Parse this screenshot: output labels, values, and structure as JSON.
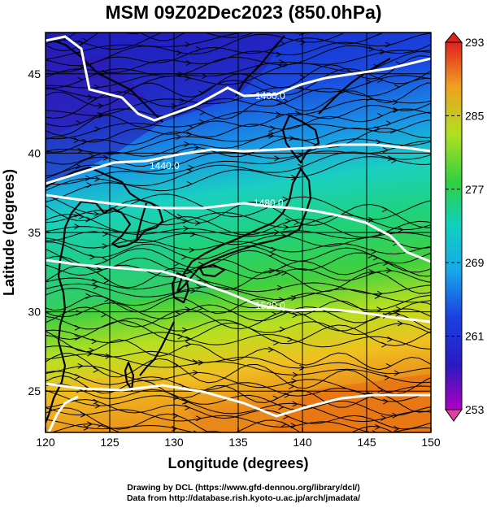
{
  "title": "MSM 09Z02Dec2023 (850.0hPa)",
  "xaxis": {
    "label": "Longitude (degrees)",
    "ticks": [
      120,
      125,
      130,
      135,
      140,
      145,
      150
    ],
    "range": [
      120,
      150
    ]
  },
  "yaxis": {
    "label": "Latitude  (degrees)",
    "ticks": [
      25,
      30,
      35,
      40,
      45
    ],
    "range": [
      22.4,
      47.6
    ]
  },
  "colorbar": {
    "ticks": [
      293,
      285,
      277,
      269,
      261,
      253
    ],
    "range": [
      253,
      293
    ]
  },
  "contours": [
    {
      "label": "1400.0"
    },
    {
      "label": "1440.0"
    },
    {
      "label": "1480.0"
    },
    {
      "label": "1520.0"
    }
  ],
  "credits": [
    "Drawing by DCL (https://www.gfd-dennou.org/library/dcl/)",
    "Data from http://database.rish.kyoto-u.ac.jp/arch/jmadata/"
  ],
  "colors": {
    "cold": "#1a22c8",
    "mid": "#1fd27a",
    "warm": "#e8871a",
    "contour": "#ffffff",
    "streamline": "#000000"
  }
}
